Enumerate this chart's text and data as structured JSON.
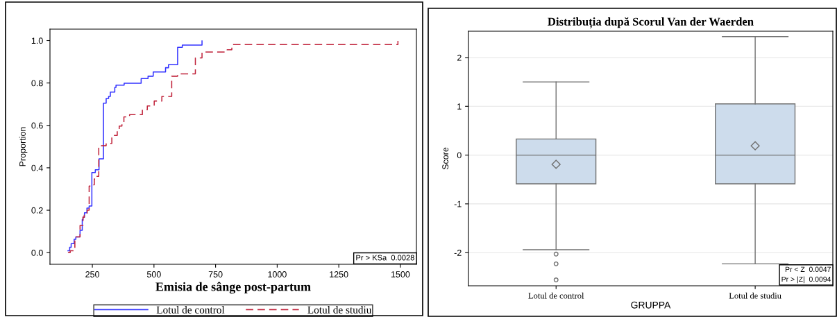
{
  "chart_data": [
    {
      "type": "step",
      "xlabel": "Emisia de sânge post-partum",
      "ylabel": "Proportion",
      "xlim": [
        78,
        1565
      ],
      "xticks": [
        250,
        500,
        750,
        1000,
        1250,
        1500
      ],
      "ylim": [
        -0.055,
        1.054
      ],
      "yticks": [
        {
          "value": 0,
          "label": "0.0"
        },
        {
          "value": 0.2,
          "label": "0.2"
        },
        {
          "value": 0.4,
          "label": "0.4"
        },
        {
          "value": 0.6,
          "label": "0.6"
        },
        {
          "value": 0.8,
          "label": "0.8"
        },
        {
          "value": 1.0,
          "label": "1.0"
        }
      ],
      "grid": false,
      "legend": "bottom",
      "annotations": [
        "Pr > KSa  0.0028"
      ],
      "series": [
        {
          "name": "Lotul de control",
          "color": "#3333ff",
          "line_style": "solid",
          "x": [
            151,
            158,
            164,
            176,
            183,
            200,
            209,
            212,
            218,
            228,
            237,
            248,
            262,
            277,
            295,
            306,
            316,
            323,
            341,
            346,
            379,
            448,
            476,
            497,
            547,
            559,
            596,
            615,
            695,
            695
          ],
          "values": [
            0.009,
            0.025,
            0.042,
            0.063,
            0.074,
            0.105,
            0.156,
            0.167,
            0.188,
            0.21,
            0.22,
            0.378,
            0.391,
            0.442,
            0.705,
            0.727,
            0.737,
            0.757,
            0.779,
            0.79,
            0.799,
            0.821,
            0.832,
            0.852,
            0.872,
            0.886,
            0.968,
            0.979,
            0.979,
            0.998
          ]
        },
        {
          "name": "Lotul de studiu",
          "color": "#c0223a",
          "line_style": "dashed",
          "x": [
            151,
            160,
            179,
            184,
            200,
            212,
            217,
            229,
            237,
            252,
            258,
            265,
            276,
            306,
            329,
            351,
            359,
            370,
            378,
            401,
            453,
            473,
            501,
            532,
            572,
            596,
            668,
            695,
            797,
            816,
            992,
            1490,
            1490
          ],
          "values": [
            0.0,
            0.009,
            0.063,
            0.074,
            0.128,
            0.167,
            0.18,
            0.2,
            0.314,
            0.32,
            0.347,
            0.36,
            0.504,
            0.515,
            0.553,
            0.575,
            0.597,
            0.607,
            0.64,
            0.651,
            0.674,
            0.692,
            0.715,
            0.737,
            0.832,
            0.843,
            0.918,
            0.946,
            0.957,
            0.981,
            0.981,
            0.998,
            0.998
          ]
        }
      ]
    },
    {
      "type": "box",
      "title": "Distribuția după Scorul Van der Waerden",
      "xlabel": "GRUPPA",
      "ylabel": "Score",
      "categories": [
        "Lotul de control",
        "Lotul de studiu"
      ],
      "ylim": [
        -2.68,
        2.54
      ],
      "yticks": [
        -2,
        -1,
        0,
        1,
        2
      ],
      "grid": "y",
      "annotations": [
        "Pr < Z  0.0047",
        "Pr > |Z|  0.0094"
      ],
      "series": [
        {
          "color": "#cddcec",
          "boxes": [
            {
              "low": -1.94,
              "q1": -0.59,
              "median": 0,
              "q3": 0.33,
              "high": 1.5,
              "mean": -0.19,
              "outliers": [
                -2.03,
                -2.23,
                -2.56
              ]
            },
            {
              "low": -2.23,
              "q1": -0.59,
              "median": 0,
              "q3": 1.05,
              "high": 2.43,
              "mean": 0.19
            }
          ]
        }
      ]
    }
  ]
}
